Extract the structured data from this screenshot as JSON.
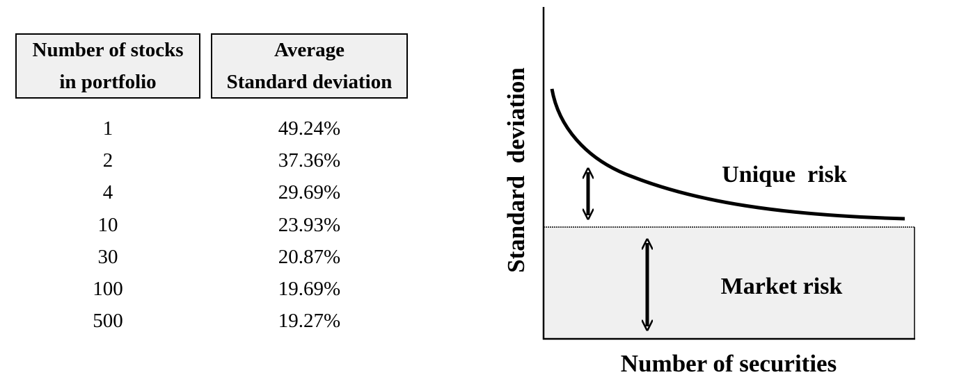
{
  "table": {
    "header_stocks": [
      "Number of stocks",
      "in portfolio"
    ],
    "header_sd": [
      "Average",
      "Standard deviation"
    ],
    "rows": [
      {
        "stocks": "1",
        "sd": "49.24%"
      },
      {
        "stocks": "2",
        "sd": "37.36%"
      },
      {
        "stocks": "4",
        "sd": "29.69%"
      },
      {
        "stocks": "10",
        "sd": "23.93%"
      },
      {
        "stocks": "30",
        "sd": "20.87%"
      },
      {
        "stocks": "100",
        "sd": "19.69%"
      },
      {
        "stocks": "500",
        "sd": "19.27%"
      }
    ]
  },
  "diagram": {
    "ylabel": "Standard  deviation",
    "xlabel": "Number of securities",
    "unique_risk_label": "Unique  risk",
    "market_risk_label": "Market risk",
    "market_fill": "#f0f0f0",
    "line_color": "#000000"
  }
}
